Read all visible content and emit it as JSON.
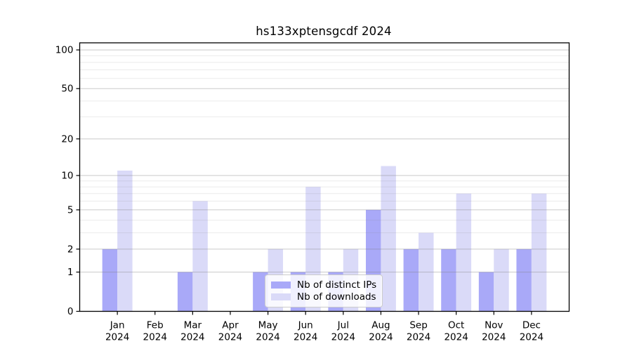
{
  "chart_data": {
    "type": "bar",
    "title": "hs133xptensgcdf 2024",
    "categories": [
      "Jan",
      "Feb",
      "Mar",
      "Apr",
      "May",
      "Jun",
      "Jul",
      "Aug",
      "Sep",
      "Oct",
      "Nov",
      "Dec"
    ],
    "category_year": "2024",
    "series": [
      {
        "name": "Nb of distinct IPs",
        "color": "#a9a9f8",
        "values": [
          2,
          0,
          1,
          0,
          1,
          1,
          1,
          5,
          2,
          2,
          1,
          2
        ]
      },
      {
        "name": "Nb of downloads",
        "color": "#dadaf8",
        "values": [
          11,
          0,
          6,
          0,
          2,
          8,
          2,
          12,
          3,
          7,
          2,
          7
        ]
      }
    ],
    "xlabel": "",
    "ylabel": "",
    "yscale": "log1p",
    "ylim": [
      0,
      113
    ],
    "yticks": [
      0,
      1,
      2,
      5,
      10,
      20,
      50,
      100
    ],
    "yticks_minor": [
      3,
      4,
      6,
      7,
      8,
      9,
      30,
      40,
      60,
      70,
      80,
      90
    ],
    "grid": "on",
    "legend_position": "lower center"
  },
  "colors": {
    "background": "#ffffff",
    "axis": "#000000",
    "text": "#000000",
    "grid_major": "#cccccc",
    "grid_minor": "#ededed",
    "legend_border": "#cccccc",
    "legend_bg": "#ffffff"
  }
}
